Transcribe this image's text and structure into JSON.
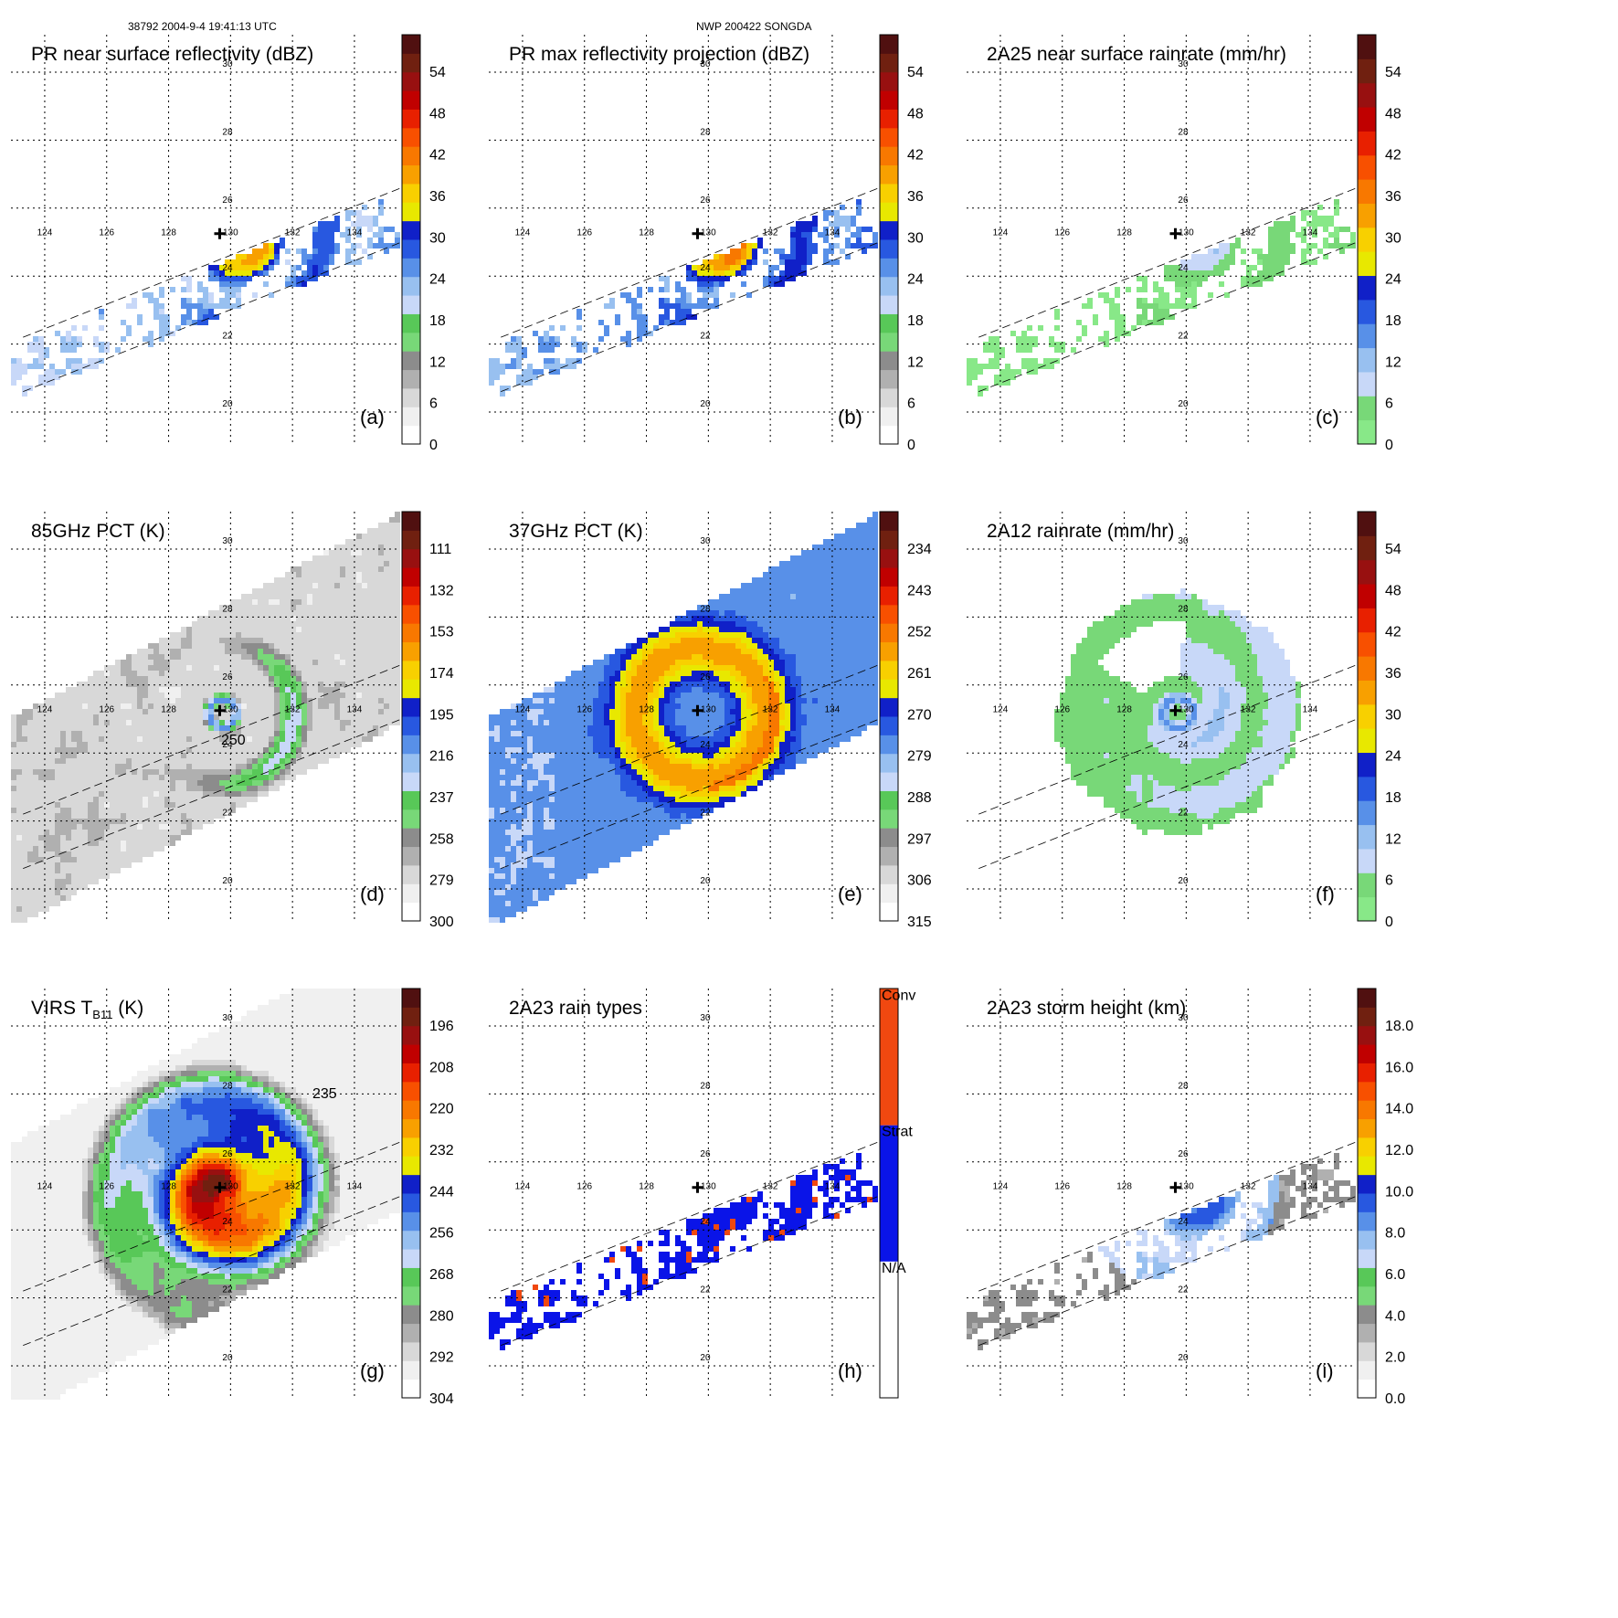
{
  "header": {
    "left": "38792 2004-9-4 19:41:13 UTC",
    "center": "NWP 200422 SONGDA"
  },
  "map": {
    "lon_labels": [
      "124",
      "126",
      "128",
      "130",
      "132",
      "134"
    ],
    "lat_labels": [
      "20",
      "22",
      "24",
      "26",
      "28",
      "30"
    ]
  },
  "chart_data": [
    {
      "type": "heatmap",
      "panel": "(a)",
      "title": "PR near surface reflectivity (dBZ)",
      "field": "pr",
      "ticks": [
        "0",
        "6",
        "12",
        "18",
        "24",
        "30",
        "36",
        "42",
        "48",
        "54"
      ],
      "colors": [
        "#ffffff",
        "#f0f0f0",
        "#d8d8d8",
        "#b0b0b0",
        "#8c8c8c",
        "#78d878",
        "#58c858",
        "#c8d8f8",
        "#98c0f0",
        "#5890e8",
        "#2858e0",
        "#1020c8",
        "#e8e800",
        "#f8d000",
        "#f8a000",
        "#f87800",
        "#f85000",
        "#e82000",
        "#c00000",
        "#981010",
        "#702010",
        "#501010"
      ]
    },
    {
      "type": "heatmap",
      "panel": "(b)",
      "title": "PR max reflectivity projection (dBZ)",
      "field": "prmax",
      "ticks": [
        "0",
        "6",
        "12",
        "18",
        "24",
        "30",
        "36",
        "42",
        "48",
        "54"
      ],
      "colors": [
        "#ffffff",
        "#f0f0f0",
        "#d8d8d8",
        "#b0b0b0",
        "#8c8c8c",
        "#78d878",
        "#58c858",
        "#c8d8f8",
        "#98c0f0",
        "#5890e8",
        "#2858e0",
        "#1020c8",
        "#e8e800",
        "#f8d000",
        "#f8a000",
        "#f87800",
        "#f85000",
        "#e82000",
        "#c00000",
        "#981010",
        "#702010",
        "#501010"
      ]
    },
    {
      "type": "heatmap",
      "panel": "(c)",
      "title": "2A25 near surface rainrate (mm/hr)",
      "field": "rr25",
      "ticks": [
        "0",
        "6",
        "12",
        "18",
        "24",
        "30",
        "36",
        "42",
        "48",
        "54"
      ],
      "colors": [
        "#88e888",
        "#78d878",
        "#c8d8f8",
        "#98c0f0",
        "#5890e8",
        "#2858e0",
        "#1020c8",
        "#e8e800",
        "#f8d000",
        "#f8a000",
        "#f87800",
        "#f85000",
        "#e82000",
        "#c00000",
        "#981010",
        "#702010",
        "#501010"
      ]
    },
    {
      "type": "heatmap",
      "panel": "(d)",
      "title": "85GHz PCT (K)",
      "field": "pct85",
      "ticks": [
        "300",
        "279",
        "258",
        "237",
        "216",
        "195",
        "174",
        "153",
        "132",
        "111"
      ],
      "contour_label": "250",
      "colors": [
        "#ffffff",
        "#f0f0f0",
        "#d8d8d8",
        "#b0b0b0",
        "#8c8c8c",
        "#78d878",
        "#58c858",
        "#c8d8f8",
        "#98c0f0",
        "#5890e8",
        "#2858e0",
        "#1020c8",
        "#e8e800",
        "#f8d000",
        "#f8a000",
        "#f87800",
        "#f85000",
        "#e82000",
        "#c00000",
        "#981010",
        "#702010",
        "#501010"
      ]
    },
    {
      "type": "heatmap",
      "panel": "(e)",
      "title": "37GHz PCT (K)",
      "field": "pct37",
      "ticks": [
        "315",
        "306",
        "297",
        "288",
        "279",
        "270",
        "261",
        "252",
        "243",
        "234"
      ],
      "colors": [
        "#ffffff",
        "#f0f0f0",
        "#d8d8d8",
        "#b0b0b0",
        "#8c8c8c",
        "#78d878",
        "#58c858",
        "#c8d8f8",
        "#98c0f0",
        "#5890e8",
        "#2858e0",
        "#1020c8",
        "#e8e800",
        "#f8d000",
        "#f8a000",
        "#f87800",
        "#f85000",
        "#e82000",
        "#c00000",
        "#981010",
        "#702010",
        "#501010"
      ]
    },
    {
      "type": "heatmap",
      "panel": "(f)",
      "title": "2A12 rainrate (mm/hr)",
      "field": "rr12",
      "ticks": [
        "0",
        "6",
        "12",
        "18",
        "24",
        "30",
        "36",
        "42",
        "48",
        "54"
      ],
      "colors": [
        "#88e888",
        "#78d878",
        "#c8d8f8",
        "#98c0f0",
        "#5890e8",
        "#2858e0",
        "#1020c8",
        "#e8e800",
        "#f8d000",
        "#f8a000",
        "#f87800",
        "#f85000",
        "#e82000",
        "#c00000",
        "#981010",
        "#702010",
        "#501010"
      ]
    },
    {
      "type": "heatmap",
      "panel": "(g)",
      "title": "VIRS T",
      "title_sub": "B11",
      "title_suffix": " (K)",
      "field": "virs",
      "ticks": [
        "304",
        "292",
        "280",
        "268",
        "256",
        "244",
        "232",
        "220",
        "208",
        "196"
      ],
      "contour_label": "235",
      "colors": [
        "#ffffff",
        "#f0f0f0",
        "#d8d8d8",
        "#b0b0b0",
        "#8c8c8c",
        "#78d878",
        "#58c858",
        "#c8d8f8",
        "#98c0f0",
        "#5890e8",
        "#2858e0",
        "#1020c8",
        "#e8e800",
        "#f8d000",
        "#f8a000",
        "#f87800",
        "#f85000",
        "#e82000",
        "#c00000",
        "#981010",
        "#702010",
        "#501010"
      ]
    },
    {
      "type": "heatmap",
      "panel": "(h)",
      "title": "2A23 rain types",
      "field": "raintype",
      "categories": [
        "N/A",
        "Strat",
        "Conv"
      ],
      "colors": [
        "#ffffff",
        "#0a14e8",
        "#f04810"
      ]
    },
    {
      "type": "heatmap",
      "panel": "(i)",
      "title": "2A23 storm height (km)",
      "field": "sth",
      "ticks": [
        "0.0",
        "2.0",
        "4.0",
        "6.0",
        "8.0",
        "10.0",
        "12.0",
        "14.0",
        "16.0",
        "18.0"
      ],
      "colors": [
        "#ffffff",
        "#f0f0f0",
        "#d8d8d8",
        "#b0b0b0",
        "#8c8c8c",
        "#78d878",
        "#58c858",
        "#c8d8f8",
        "#98c0f0",
        "#5890e8",
        "#2858e0",
        "#1020c8",
        "#e8e800",
        "#f8d000",
        "#f8a000",
        "#f87800",
        "#f85000",
        "#e82000",
        "#c00000",
        "#981010",
        "#702010",
        "#501010"
      ]
    }
  ]
}
